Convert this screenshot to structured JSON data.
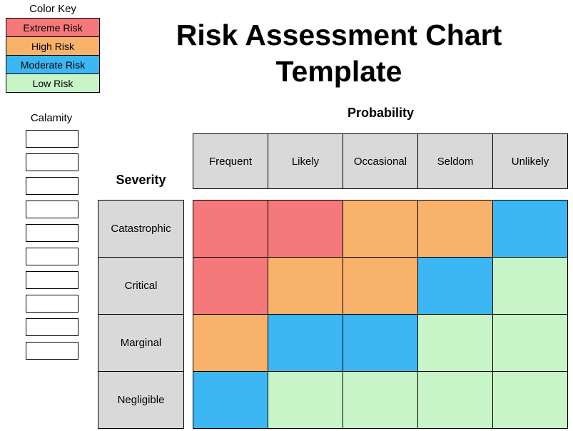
{
  "title": {
    "line1": "Risk Assessment Chart",
    "line2": "Template"
  },
  "color_key": {
    "title": "Color Key",
    "items": [
      {
        "label": "Extreme Risk",
        "color": "#F5797B"
      },
      {
        "label": "High Risk",
        "color": "#F9B26A"
      },
      {
        "label": "Moderate Risk",
        "color": "#3DB7F4"
      },
      {
        "label": "Low Risk",
        "color": "#C8F5C8"
      }
    ]
  },
  "calamity": {
    "title": "Calamity",
    "box_count": 10
  },
  "chart_data": {
    "type": "heatmap",
    "title": "Risk Assessment Chart Template",
    "probability_label": "Probability",
    "severity_label": "Severity",
    "columns": [
      "Frequent",
      "Likely",
      "Occasional",
      "Seldom",
      "Unlikely"
    ],
    "rows": [
      "Catastrophic",
      "Critical",
      "Marginal",
      "Negligible"
    ],
    "cells": [
      [
        "extreme",
        "extreme",
        "high",
        "high",
        "moderate"
      ],
      [
        "extreme",
        "high",
        "high",
        "moderate",
        "low"
      ],
      [
        "high",
        "moderate",
        "moderate",
        "low",
        "low"
      ],
      [
        "moderate",
        "low",
        "low",
        "low",
        "low"
      ]
    ],
    "risk_colors": {
      "extreme": "#F5797B",
      "high": "#F9B26A",
      "moderate": "#3DB7F4",
      "low": "#C8F5C8"
    },
    "header_color": "#D9D9D9",
    "legend": [
      "Extreme Risk",
      "High Risk",
      "Moderate Risk",
      "Low Risk"
    ],
    "legend_position": "top-left",
    "grid": true
  }
}
